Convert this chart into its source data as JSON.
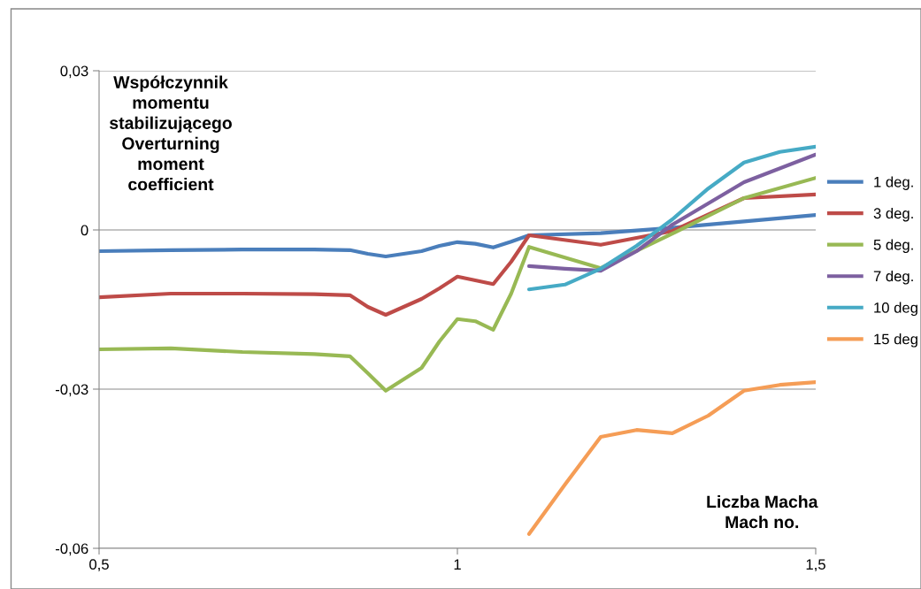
{
  "chart_data": {
    "type": "line",
    "ylabel": "Współczynnik\nmomentu\nstabilizującego\nOverturning\nmoment\ncoefficient",
    "xlabel": "Liczba Macha\nMach no.",
    "xlim": [
      0.5,
      1.5
    ],
    "xticks": [
      {
        "value": 0.5,
        "label": "0,5"
      },
      {
        "value": 1,
        "label": "1"
      },
      {
        "value": 1.5,
        "label": "1,5"
      }
    ],
    "ylim": [
      -0.06,
      0.03
    ],
    "yticks": [
      {
        "value": -0.06,
        "label": "-0,06"
      },
      {
        "value": -0.03,
        "label": "-0,03"
      },
      {
        "value": 0,
        "label": "0"
      },
      {
        "value": 0.03,
        "label": "0,03"
      }
    ],
    "grid": "y",
    "legend": "right",
    "marker": "none",
    "line_style": "solid",
    "series": [
      {
        "name": "1 deg.",
        "color": "#4a7ebb",
        "x": [
          0.5,
          0.6,
          0.7,
          0.8,
          0.85,
          0.875,
          0.9,
          0.95,
          0.975,
          1.0,
          1.025,
          1.05,
          1.075,
          1.1,
          1.2,
          1.3,
          1.4,
          1.5
        ],
        "values": [
          -0.004,
          -0.0038,
          -0.0037,
          -0.0037,
          -0.0038,
          -0.0045,
          -0.005,
          -0.004,
          -0.003,
          -0.0023,
          -0.0026,
          -0.0033,
          -0.0022,
          -0.001,
          -0.0006,
          0.0004,
          0.0016,
          0.0028
        ]
      },
      {
        "name": "3 deg.",
        "color": "#be4b48",
        "x": [
          0.5,
          0.6,
          0.7,
          0.8,
          0.85,
          0.875,
          0.9,
          0.95,
          0.975,
          1.0,
          1.025,
          1.05,
          1.075,
          1.1,
          1.2,
          1.3,
          1.4,
          1.5
        ],
        "values": [
          -0.0127,
          -0.012,
          -0.012,
          -0.0121,
          -0.0123,
          -0.0145,
          -0.016,
          -0.013,
          -0.011,
          -0.0088,
          -0.0095,
          -0.0102,
          -0.006,
          -0.001,
          -0.0028,
          -0.0002,
          0.006,
          0.0067
        ]
      },
      {
        "name": "5 deg.",
        "color": "#98b954",
        "x": [
          0.5,
          0.6,
          0.7,
          0.8,
          0.85,
          0.875,
          0.9,
          0.95,
          0.975,
          1.0,
          1.025,
          1.05,
          1.075,
          1.1,
          1.2,
          1.3,
          1.4,
          1.5
        ],
        "values": [
          -0.0225,
          -0.0223,
          -0.023,
          -0.0234,
          -0.0238,
          -0.027,
          -0.0303,
          -0.026,
          -0.021,
          -0.0168,
          -0.0172,
          -0.0188,
          -0.012,
          -0.0032,
          -0.0072,
          -0.0007,
          0.006,
          0.0098
        ]
      },
      {
        "name": "7 deg.",
        "color": "#7d60a0",
        "x": [
          1.1,
          1.15,
          1.2,
          1.25,
          1.3,
          1.4,
          1.5
        ],
        "values": [
          -0.0068,
          -0.0073,
          -0.0077,
          -0.004,
          0.001,
          0.009,
          0.0142
        ]
      },
      {
        "name": "10 deg",
        "color": "#46aac5",
        "x": [
          1.1,
          1.15,
          1.2,
          1.25,
          1.3,
          1.35,
          1.4,
          1.45,
          1.5
        ],
        "values": [
          -0.0112,
          -0.0103,
          -0.0073,
          -0.003,
          0.002,
          0.0078,
          0.0127,
          0.0147,
          0.0157
        ]
      },
      {
        "name": "15 deg",
        "color": "#f59d56",
        "x": [
          1.1,
          1.15,
          1.2,
          1.25,
          1.3,
          1.35,
          1.4,
          1.45,
          1.5
        ],
        "values": [
          -0.0573,
          -0.048,
          -0.039,
          -0.0377,
          -0.0383,
          -0.035,
          -0.0303,
          -0.0292,
          -0.0287
        ]
      }
    ]
  }
}
